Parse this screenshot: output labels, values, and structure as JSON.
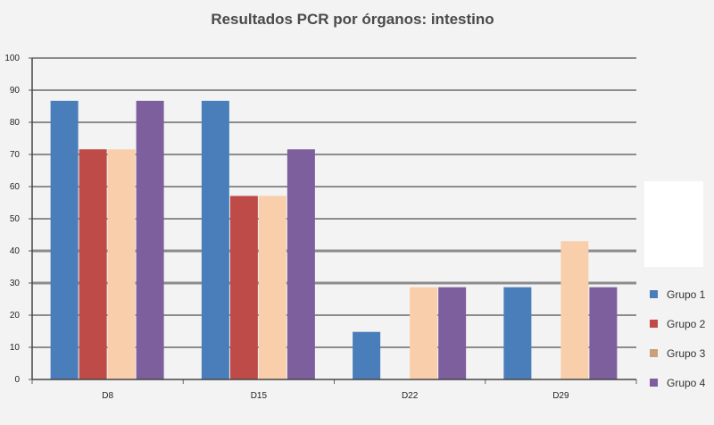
{
  "chart_data": {
    "type": "bar",
    "title": "Resultados PCR por órganos: intestino",
    "xlabel": "",
    "ylabel": "",
    "ylim": [
      0,
      100
    ],
    "yticks": [
      0,
      10,
      20,
      30,
      40,
      50,
      60,
      70,
      80,
      90,
      100
    ],
    "categories": [
      "D8",
      "D15",
      "D22",
      "D29"
    ],
    "series": [
      {
        "name": "Grupo 1",
        "color": "#4a7ebb",
        "values": [
          86.7,
          86.7,
          14.8,
          28.7
        ]
      },
      {
        "name": "Grupo 2",
        "color": "#be4b48",
        "values": [
          71.6,
          57.1,
          0,
          0
        ]
      },
      {
        "name": "Grupo 3",
        "color": "#f9cfab",
        "values": [
          71.6,
          57.1,
          28.7,
          43.0
        ]
      },
      {
        "name": "Grupo 4",
        "color": "#7e5f9e",
        "values": [
          86.7,
          71.6,
          28.7,
          28.7
        ]
      }
    ],
    "legend": {
      "position": "right",
      "swatch_colors": [
        "#4a7ebb",
        "#be4b48",
        "#c8a07a",
        "#7e5f9e"
      ]
    },
    "grid": true
  }
}
